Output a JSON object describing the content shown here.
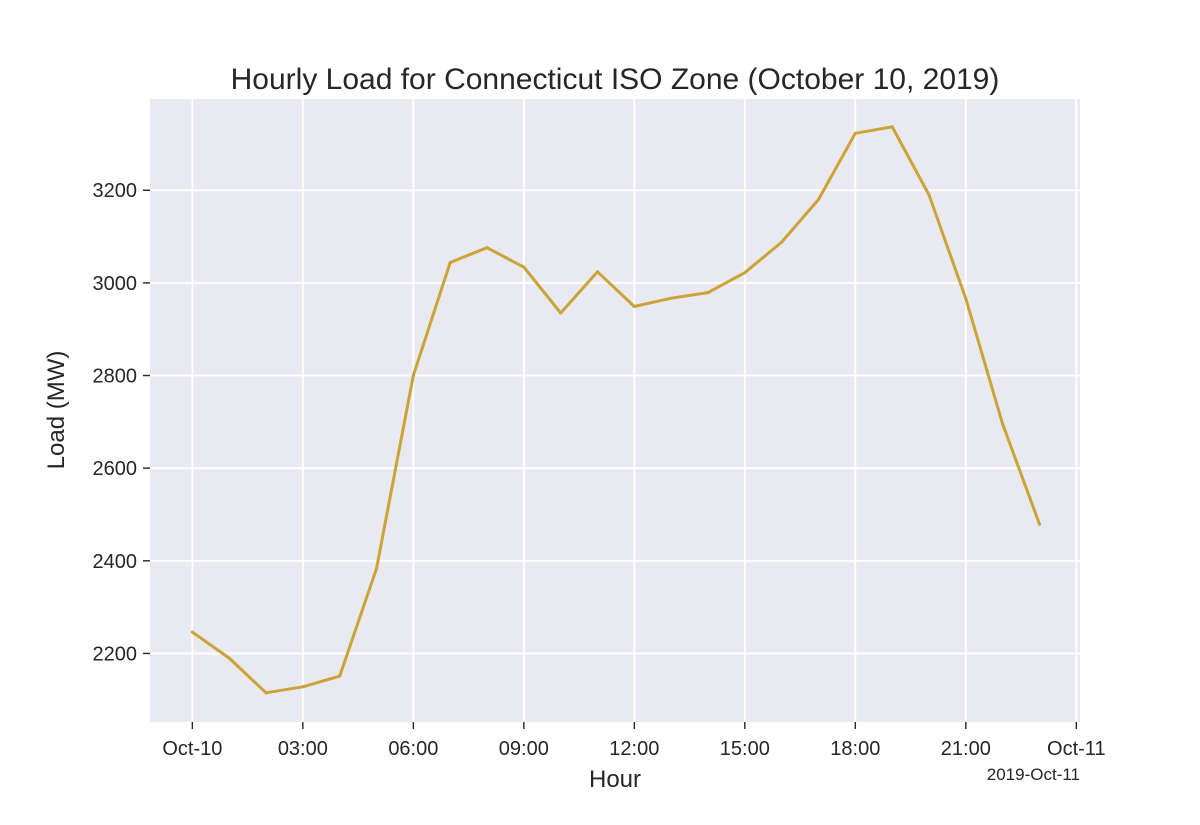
{
  "chart_data": {
    "type": "line",
    "title": "Hourly Load for Connecticut ISO Zone (October 10, 2019)",
    "xlabel": "Hour",
    "ylabel": "Load (MW)",
    "x_offset_label": "2019-Oct-11",
    "x": [
      "00:00",
      "01:00",
      "02:00",
      "03:00",
      "04:00",
      "05:00",
      "06:00",
      "07:00",
      "08:00",
      "09:00",
      "10:00",
      "11:00",
      "12:00",
      "13:00",
      "14:00",
      "15:00",
      "16:00",
      "17:00",
      "18:00",
      "19:00",
      "20:00",
      "21:00",
      "22:00",
      "23:00"
    ],
    "x_hours": [
      0,
      1,
      2,
      3,
      4,
      5,
      6,
      7,
      8,
      9,
      10,
      11,
      12,
      13,
      14,
      15,
      16,
      17,
      18,
      19,
      20,
      21,
      22,
      23
    ],
    "xlim_hours": [
      -1.15,
      24.1
    ],
    "xticks": [
      {
        "hour": 0,
        "label": "Oct-10"
      },
      {
        "hour": 3,
        "label": "03:00"
      },
      {
        "hour": 6,
        "label": "06:00"
      },
      {
        "hour": 9,
        "label": "09:00"
      },
      {
        "hour": 12,
        "label": "12:00"
      },
      {
        "hour": 15,
        "label": "15:00"
      },
      {
        "hour": 18,
        "label": "18:00"
      },
      {
        "hour": 21,
        "label": "21:00"
      },
      {
        "hour": 24,
        "label": "Oct-11"
      }
    ],
    "series": [
      {
        "values": [
          2246,
          2190,
          2115,
          2128,
          2151,
          2383,
          2800,
          3044,
          3076,
          3034,
          2935,
          3024,
          2949,
          2967,
          2979,
          3022,
          3088,
          3180,
          3323,
          3337,
          3190,
          2966,
          2695,
          2479
        ]
      }
    ],
    "ylim": [
      2052,
      3397
    ],
    "yticks": [
      2200,
      2400,
      2600,
      2800,
      3000,
      3200
    ],
    "grid": true,
    "legend": "none",
    "line_color": "#cca336",
    "background_color": "#e9e9f1",
    "grid_color": "#ffffff"
  }
}
